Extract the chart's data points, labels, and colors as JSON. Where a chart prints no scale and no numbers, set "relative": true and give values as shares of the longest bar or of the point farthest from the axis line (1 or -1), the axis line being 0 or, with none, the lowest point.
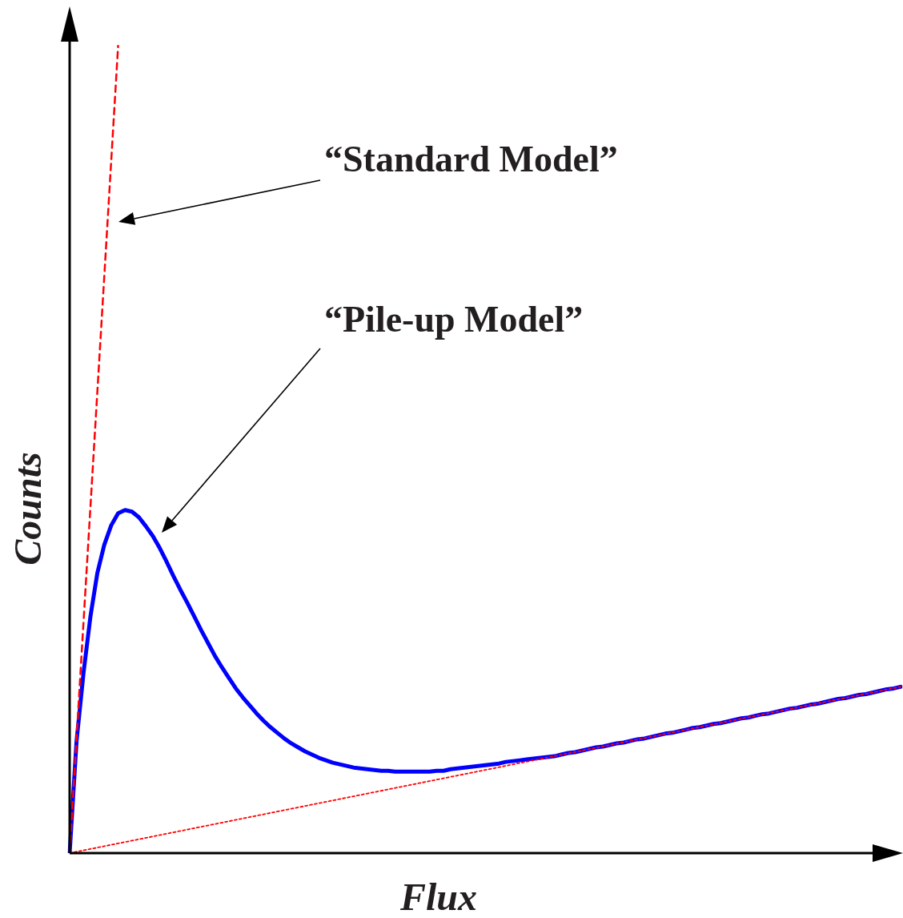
{
  "chart_data": {
    "type": "line",
    "xlabel": "Flux",
    "ylabel": "Counts",
    "relative": true,
    "legend": false,
    "marker": "none",
    "annotations": [
      "“Standard Model”",
      "“Pile-up Model”"
    ],
    "categories": [
      null,
      null,
      null,
      null,
      null,
      null,
      null,
      null,
      null,
      null,
      null,
      null,
      null,
      null,
      null,
      null,
      null,
      null,
      null,
      null,
      null,
      null,
      null,
      null,
      null,
      null,
      null,
      null,
      null,
      null,
      null,
      null,
      null,
      null,
      null,
      null,
      null,
      null,
      null,
      null,
      null,
      null,
      null,
      null,
      null,
      null,
      null,
      null,
      null,
      null,
      null,
      null,
      null,
      null,
      null,
      null,
      null,
      null,
      null,
      null,
      null,
      null,
      null,
      null,
      null,
      null,
      null,
      null,
      null,
      null,
      null,
      null,
      null,
      null,
      null,
      null,
      null,
      null,
      null,
      null,
      null,
      null,
      null,
      null,
      null,
      null,
      null,
      null,
      null,
      null,
      null,
      null,
      null,
      null,
      null,
      null,
      null,
      null,
      null,
      null,
      null,
      null,
      null,
      null,
      null,
      null,
      null,
      null,
      null,
      null,
      null,
      null,
      null,
      null,
      null,
      null,
      null,
      null,
      null,
      null,
      null
    ],
    "series": [
      {
        "color": "#ff0000",
        "line_style": "dotted",
        "values": [
          0,
          null,
          null,
          null,
          null,
          null,
          null,
          null,
          null,
          null,
          null,
          null,
          null,
          null,
          null,
          null,
          null,
          null,
          null,
          null,
          null,
          null,
          null,
          null,
          null,
          null,
          null,
          null,
          null,
          null,
          null,
          null,
          null,
          null,
          null,
          null,
          null,
          null,
          null,
          null,
          null,
          null,
          null,
          null,
          null,
          null,
          null,
          null,
          null,
          null,
          null,
          null,
          null,
          null,
          null,
          null,
          null,
          null,
          null,
          null,
          null,
          null,
          null,
          null,
          null,
          null,
          null,
          null,
          null,
          null,
          null,
          null,
          null,
          null,
          null,
          null,
          null,
          null,
          null,
          null,
          null,
          null,
          null,
          null,
          null,
          null,
          null,
          null,
          null,
          null,
          null,
          null,
          null,
          null,
          null,
          null,
          null,
          null,
          null,
          null,
          null,
          null,
          null,
          null,
          null,
          null,
          null,
          null,
          null,
          null,
          null,
          null,
          null,
          null,
          null,
          null,
          null,
          null,
          null,
          null,
          0.206
        ]
      },
      {
        "color": "#0000ff",
        "line_style": "solid",
        "values": [
          0,
          0.139,
          0.223,
          0.293,
          0.347,
          0.382,
          0.406,
          0.421,
          0.425,
          0.423,
          0.416,
          0.405,
          0.393,
          0.378,
          0.361,
          0.343,
          0.326,
          0.31,
          0.293,
          0.276,
          0.26,
          0.244,
          0.23,
          0.217,
          0.204,
          0.193,
          0.183,
          0.173,
          0.164,
          0.156,
          0.149,
          0.142,
          0.136,
          0.131,
          0.126,
          0.122,
          0.118,
          0.115,
          0.112,
          0.11,
          0.108,
          0.106,
          0.105,
          0.104,
          0.103,
          0.102,
          0.102,
          0.101,
          0.101,
          0.101,
          0.101,
          0.101,
          0.101,
          0.102,
          0.102,
          0.104,
          0.105,
          0.106,
          0.107,
          0.108,
          0.109,
          0.11,
          0.111,
          0.113,
          0.114,
          0.115,
          0.116,
          0.117,
          0.118,
          0.119,
          0.12,
          0.122,
          0.124,
          0.125,
          0.127,
          0.129,
          0.131,
          0.132,
          0.134,
          0.136,
          0.137,
          0.139,
          0.141,
          0.142,
          0.144,
          0.146,
          0.148,
          0.149,
          0.151,
          0.153,
          0.155,
          0.156,
          0.158,
          0.16,
          0.161,
          0.163,
          0.165,
          0.167,
          0.168,
          0.17,
          0.172,
          0.173,
          0.175,
          0.177,
          0.179,
          0.18,
          0.182,
          0.184,
          0.185,
          0.187,
          0.189,
          0.191,
          0.192,
          0.194,
          0.196,
          0.197,
          0.199,
          0.201,
          0.203,
          0.204,
          0.206
        ]
      },
      {
        "color": "#ff0000",
        "line_style": "dashed",
        "values": [
          0,
          null,
          null,
          null,
          null,
          null,
          null,
          1,
          null,
          null,
          null,
          null,
          null,
          null,
          null,
          null,
          null,
          null,
          null,
          null,
          null,
          null,
          null,
          null,
          null,
          null,
          null,
          null,
          null,
          null,
          null,
          null,
          null,
          null,
          null,
          null,
          null,
          null,
          null,
          null,
          null,
          null,
          null,
          null,
          null,
          null,
          null,
          null,
          null,
          null,
          null,
          null,
          null,
          null,
          null,
          null,
          null,
          null,
          null,
          null,
          null,
          null,
          null,
          null,
          null,
          null,
          null,
          null,
          null,
          null,
          null,
          null,
          null,
          null,
          null,
          null,
          null,
          null,
          null,
          null,
          null,
          null,
          null,
          null,
          null,
          null,
          null,
          null,
          null,
          null,
          null,
          null,
          null,
          null,
          null,
          null,
          null,
          null,
          null,
          null,
          null,
          null,
          null,
          null,
          null,
          null,
          null,
          null,
          null,
          null,
          null,
          null,
          null,
          null,
          null,
          null,
          null,
          null,
          null,
          null,
          null
        ]
      }
    ]
  }
}
